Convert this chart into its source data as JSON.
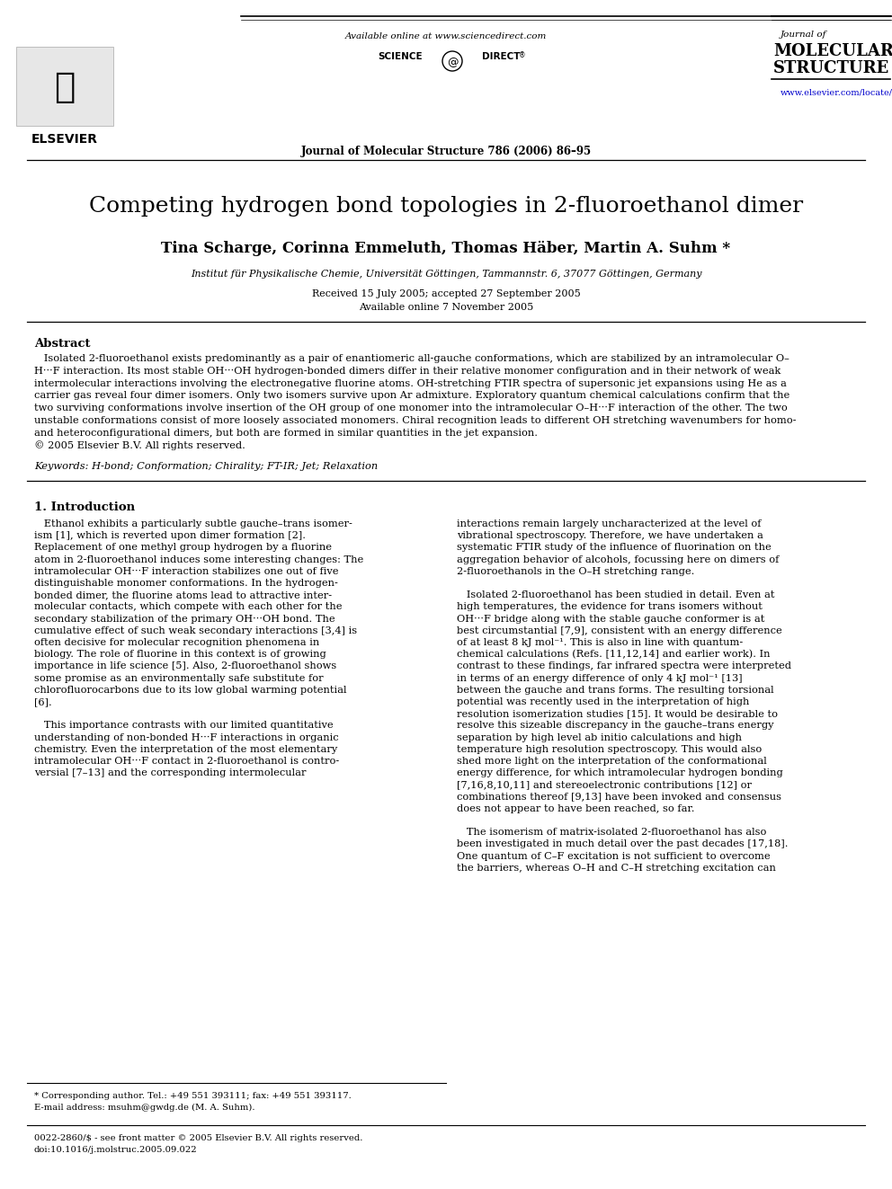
{
  "title": "Competing hydrogen bond topologies in 2-fluoroethanol dimer",
  "authors": "Tina Scharge, Corinna Emmeluth, Thomas Häber, Martin A. Suhm *",
  "affiliation": "Institut für Physikalische Chemie, Universität Göttingen, Tammannstr. 6, 37077 Göttingen, Germany",
  "received": "Received 15 July 2005; accepted 27 September 2005",
  "available": "Available online 7 November 2005",
  "journal_header": "Journal of Molecular Structure 786 (2006) 86–95",
  "available_online": "Available online at www.sciencedirect.com",
  "journal_name_line1": "Journal of",
  "journal_name_line2": "MOLECULAR",
  "journal_name_line3": "STRUCTURE",
  "journal_url": "www.elsevier.com/locate/molstruc",
  "abstract_title": "Abstract",
  "keywords": "Keywords: H-bond; Conformation; Chirality; FT-IR; Jet; Relaxation",
  "section1_title": "1. Introduction",
  "footnote1": "* Corresponding author. Tel.: +49 551 393111; fax: +49 551 393117.",
  "footnote2": "E-mail address: msuhm@gwdg.de (M. A. Suhm).",
  "footnote3": "0022-2860/$ - see front matter © 2005 Elsevier B.V. All rights reserved.",
  "footnote4": "doi:10.1016/j.molstruc.2005.09.022",
  "bg_color": "#ffffff",
  "text_color": "#000000",
  "link_color": "#0000cc",
  "abstract_lines": [
    "   Isolated 2-fluoroethanol exists predominantly as a pair of enantiomeric all-gauche conformations, which are stabilized by an intramolecular O–",
    "H···F interaction. Its most stable OH···OH hydrogen-bonded dimers differ in their relative monomer configuration and in their network of weak",
    "intermolecular interactions involving the electronegative fluorine atoms. OH-stretching FTIR spectra of supersonic jet expansions using He as a",
    "carrier gas reveal four dimer isomers. Only two isomers survive upon Ar admixture. Exploratory quantum chemical calculations confirm that the",
    "two surviving conformations involve insertion of the OH group of one monomer into the intramolecular O–H···F interaction of the other. The two",
    "unstable conformations consist of more loosely associated monomers. Chiral recognition leads to different OH stretching wavenumbers for homo-",
    "and heteroconfigurational dimers, but both are formed in similar quantities in the jet expansion.",
    "© 2005 Elsevier B.V. All rights reserved."
  ],
  "col1_lines": [
    "   Ethanol exhibits a particularly subtle gauche–trans isomer-",
    "ism [1], which is reverted upon dimer formation [2].",
    "Replacement of one methyl group hydrogen by a fluorine",
    "atom in 2-fluoroethanol induces some interesting changes: The",
    "intramolecular OH···F interaction stabilizes one out of five",
    "distinguishable monomer conformations. In the hydrogen-",
    "bonded dimer, the fluorine atoms lead to attractive inter-",
    "molecular contacts, which compete with each other for the",
    "secondary stabilization of the primary OH···OH bond. The",
    "cumulative effect of such weak secondary interactions [3,4] is",
    "often decisive for molecular recognition phenomena in",
    "biology. The role of fluorine in this context is of growing",
    "importance in life science [5]. Also, 2-fluoroethanol shows",
    "some promise as an environmentally safe substitute for",
    "chlorofluorocarbons due to its low global warming potential",
    "[6].",
    "",
    "   This importance contrasts with our limited quantitative",
    "understanding of non-bonded H···F interactions in organic",
    "chemistry. Even the interpretation of the most elementary",
    "intramolecular OH···F contact in 2-fluoroethanol is contro-",
    "versial [7–13] and the corresponding intermolecular"
  ],
  "col2_lines": [
    "interactions remain largely uncharacterized at the level of",
    "vibrational spectroscopy. Therefore, we have undertaken a",
    "systematic FTIR study of the influence of fluorination on the",
    "aggregation behavior of alcohols, focussing here on dimers of",
    "2-fluoroethanols in the O–H stretching range.",
    "",
    "   Isolated 2-fluoroethanol has been studied in detail. Even at",
    "high temperatures, the evidence for trans isomers without",
    "OH···F bridge along with the stable gauche conformer is at",
    "best circumstantial [7,9], consistent with an energy difference",
    "of at least 8 kJ mol⁻¹. This is also in line with quantum-",
    "chemical calculations (Refs. [11,12,14] and earlier work). In",
    "contrast to these findings, far infrared spectra were interpreted",
    "in terms of an energy difference of only 4 kJ mol⁻¹ [13]",
    "between the gauche and trans forms. The resulting torsional",
    "potential was recently used in the interpretation of high",
    "resolution isomerization studies [15]. It would be desirable to",
    "resolve this sizeable discrepancy in the gauche–trans energy",
    "separation by high level ab initio calculations and high",
    "temperature high resolution spectroscopy. This would also",
    "shed more light on the interpretation of the conformational",
    "energy difference, for which intramolecular hydrogen bonding",
    "[7,16,8,10,11] and stereoelectronic contributions [12] or",
    "combinations thereof [9,13] have been invoked and consensus",
    "does not appear to have been reached, so far.",
    "",
    "   The isomerism of matrix-isolated 2-fluoroethanol has also",
    "been investigated in much detail over the past decades [17,18].",
    "One quantum of C–F excitation is not sufficient to overcome",
    "the barriers, whereas O–H and C–H stretching excitation can"
  ]
}
